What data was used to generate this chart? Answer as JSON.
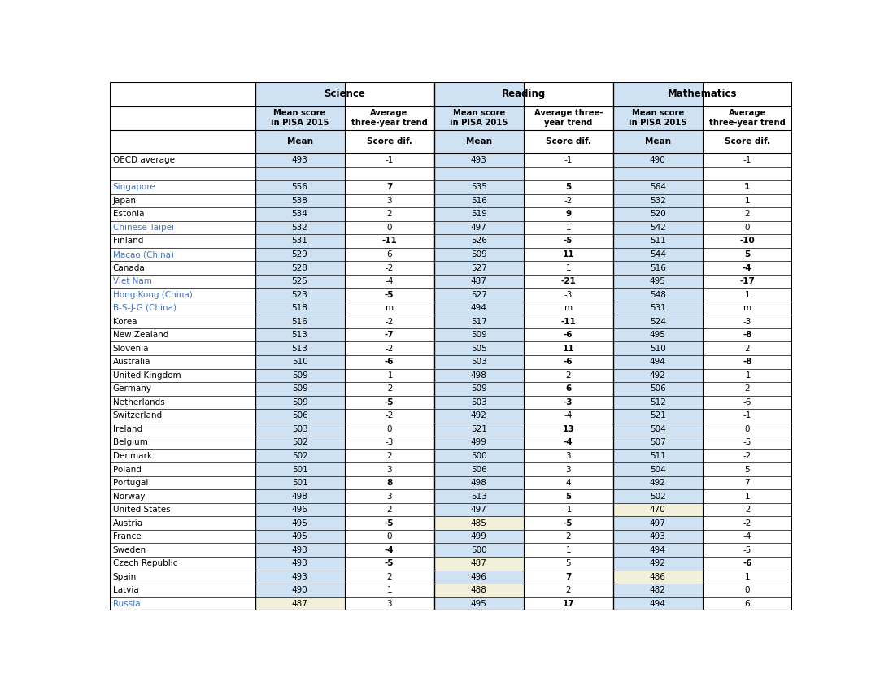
{
  "rows": [
    [
      "OECD average",
      "493",
      "-1",
      "493",
      "-1",
      "490",
      "-1"
    ],
    [
      "",
      "",
      "",
      "",
      "",
      "",
      ""
    ],
    [
      "Singapore",
      "556",
      "7",
      "535",
      "5",
      "564",
      "1"
    ],
    [
      "Japan",
      "538",
      "3",
      "516",
      "-2",
      "532",
      "1"
    ],
    [
      "Estonia",
      "534",
      "2",
      "519",
      "9",
      "520",
      "2"
    ],
    [
      "Chinese Taipei",
      "532",
      "0",
      "497",
      "1",
      "542",
      "0"
    ],
    [
      "Finland",
      "531",
      "-11",
      "526",
      "-5",
      "511",
      "-10"
    ],
    [
      "Macao (China)",
      "529",
      "6",
      "509",
      "11",
      "544",
      "5"
    ],
    [
      "Canada",
      "528",
      "-2",
      "527",
      "1",
      "516",
      "-4"
    ],
    [
      "Viet Nam",
      "525",
      "-4",
      "487",
      "-21",
      "495",
      "-17"
    ],
    [
      "Hong Kong (China)",
      "523",
      "-5",
      "527",
      "-3",
      "548",
      "1"
    ],
    [
      "B-S-J-G (China)",
      "518",
      "m",
      "494",
      "m",
      "531",
      "m"
    ],
    [
      "Korea",
      "516",
      "-2",
      "517",
      "-11",
      "524",
      "-3"
    ],
    [
      "New Zealand",
      "513",
      "-7",
      "509",
      "-6",
      "495",
      "-8"
    ],
    [
      "Slovenia",
      "513",
      "-2",
      "505",
      "11",
      "510",
      "2"
    ],
    [
      "Australia",
      "510",
      "-6",
      "503",
      "-6",
      "494",
      "-8"
    ],
    [
      "United Kingdom",
      "509",
      "-1",
      "498",
      "2",
      "492",
      "-1"
    ],
    [
      "Germany",
      "509",
      "-2",
      "509",
      "6",
      "506",
      "2"
    ],
    [
      "Netherlands",
      "509",
      "-5",
      "503",
      "-3",
      "512",
      "-6"
    ],
    [
      "Switzerland",
      "506",
      "-2",
      "492",
      "-4",
      "521",
      "-1"
    ],
    [
      "Ireland",
      "503",
      "0",
      "521",
      "13",
      "504",
      "0"
    ],
    [
      "Belgium",
      "502",
      "-3",
      "499",
      "-4",
      "507",
      "-5"
    ],
    [
      "Denmark",
      "502",
      "2",
      "500",
      "3",
      "511",
      "-2"
    ],
    [
      "Poland",
      "501",
      "3",
      "506",
      "3",
      "504",
      "5"
    ],
    [
      "Portugal",
      "501",
      "8",
      "498",
      "4",
      "492",
      "7"
    ],
    [
      "Norway",
      "498",
      "3",
      "513",
      "5",
      "502",
      "1"
    ],
    [
      "United States",
      "496",
      "2",
      "497",
      "-1",
      "470",
      "-2"
    ],
    [
      "Austria",
      "495",
      "-5",
      "485",
      "-5",
      "497",
      "-2"
    ],
    [
      "France",
      "495",
      "0",
      "499",
      "2",
      "493",
      "-4"
    ],
    [
      "Sweden",
      "493",
      "-4",
      "500",
      "1",
      "494",
      "-5"
    ],
    [
      "Czech Republic",
      "493",
      "-5",
      "487",
      "5",
      "492",
      "-6"
    ],
    [
      "Spain",
      "493",
      "2",
      "496",
      "7",
      "486",
      "1"
    ],
    [
      "Latvia",
      "490",
      "1",
      "488",
      "2",
      "482",
      "0"
    ],
    [
      "Russia",
      "487",
      "3",
      "495",
      "17",
      "494",
      "6"
    ]
  ],
  "blue_countries": [
    "Singapore",
    "Chinese Taipei",
    "Macao (China)",
    "Viet Nam",
    "Hong Kong (China)",
    "B-S-J-G (China)",
    "Russia"
  ],
  "light_yellow_cells": {
    "United States": [
      5
    ],
    "Austria": [
      3
    ],
    "Czech Republic": [
      3
    ],
    "Spain": [
      5
    ],
    "Latvia": [
      3
    ],
    "Russia": [
      1
    ]
  },
  "bold_values": {
    "Singapore": [
      2,
      4,
      6
    ],
    "Estonia": [
      4
    ],
    "Finland": [
      2,
      4,
      6
    ],
    "Macao (China)": [
      4,
      6
    ],
    "Canada": [
      6
    ],
    "Viet Nam": [
      4,
      6
    ],
    "Hong Kong (China)": [
      2
    ],
    "Korea": [
      4
    ],
    "New Zealand": [
      2,
      4,
      6
    ],
    "Slovenia": [
      4
    ],
    "Australia": [
      2,
      4,
      6
    ],
    "Germany": [
      4
    ],
    "Netherlands": [
      2,
      4
    ],
    "Ireland": [
      4
    ],
    "Belgium": [
      4
    ],
    "Portugal": [
      2
    ],
    "Norway": [
      4
    ],
    "Austria": [
      2,
      4
    ],
    "Sweden": [
      2
    ],
    "Czech Republic": [
      2,
      6
    ],
    "Spain": [
      4
    ],
    "Russia": [
      4
    ]
  },
  "bg_color": "#ffffff",
  "light_blue": "#cfe2f3",
  "light_yellow": "#f2f0d8",
  "blue_text": "#4472c4",
  "black_text": "#000000"
}
